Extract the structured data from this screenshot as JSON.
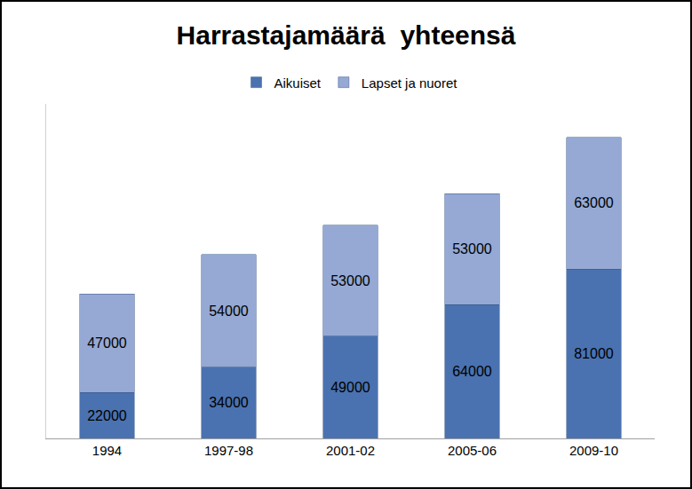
{
  "chart_data": {
    "type": "bar",
    "title": "Harrastajamäärä  yhteensä",
    "categories": [
      "1994",
      "1997-98",
      "2001-02",
      "2005-06",
      "2009-10"
    ],
    "series": [
      {
        "name": "Aikuiset",
        "color": "#4a72b0",
        "values": [
          22000,
          34000,
          49000,
          64000,
          81000
        ]
      },
      {
        "name": "Lapset ja nuoret",
        "color": "#95a9d4",
        "values": [
          47000,
          54000,
          53000,
          53000,
          63000
        ]
      }
    ],
    "stacked": true,
    "data_labels": true,
    "legend": "top",
    "tick_labels": "x",
    "ylim": [
      0,
      160000
    ],
    "grid": false
  }
}
